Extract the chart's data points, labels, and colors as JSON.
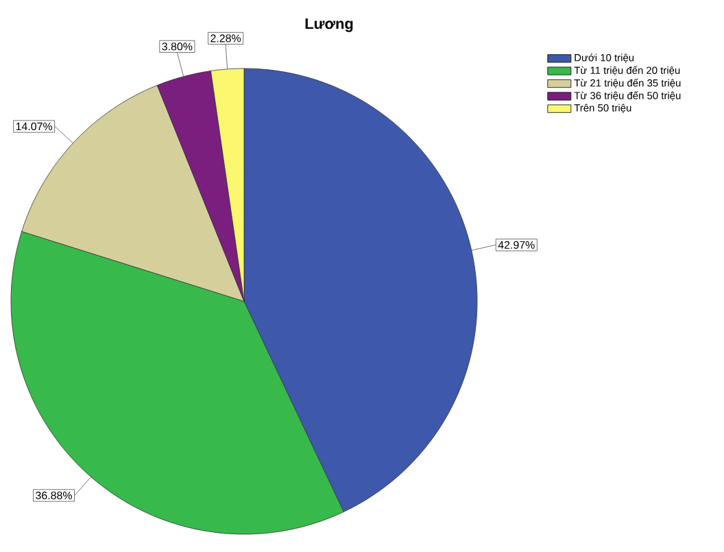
{
  "chart_data": {
    "type": "pie",
    "title": "Lương",
    "categories": [
      "Dưới 10 triệu",
      "Từ 11 triệu đến 20 triệu",
      "Từ 21 triệu đến 35 triệu",
      "Từ 36 triệu đến 50 triệu",
      "Trên 50 triệu"
    ],
    "values": [
      42.97,
      36.88,
      14.07,
      3.8,
      2.28
    ],
    "value_labels": [
      "42.97%",
      "36.88%",
      "14.07%",
      "3.80%",
      "2.28%"
    ],
    "colors": [
      "#3e58ac",
      "#37b94b",
      "#d5cf9c",
      "#7a1f7e",
      "#fbf76e"
    ],
    "legend": "top right"
  }
}
